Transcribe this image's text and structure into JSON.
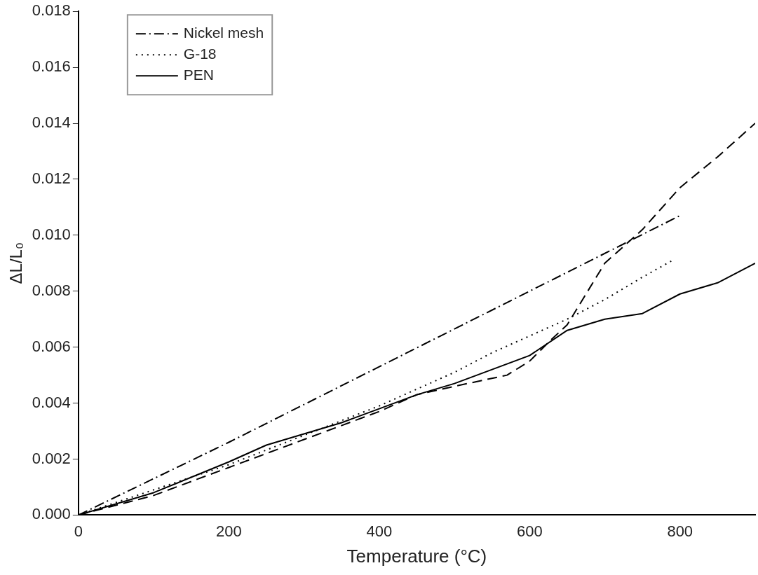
{
  "chart_data": {
    "type": "line",
    "xlabel": "Temperature (°C)",
    "ylabel": "ΔL/L₀",
    "xlim": [
      0,
      900
    ],
    "xticks": [
      0,
      200,
      400,
      600,
      800
    ],
    "ylim": [
      0,
      0.018
    ],
    "yticks": [
      {
        "value": 0,
        "label": "0.000"
      },
      {
        "value": 0.002,
        "label": "0.002"
      },
      {
        "value": 0.004,
        "label": "0.004"
      },
      {
        "value": 0.006,
        "label": "0.006"
      },
      {
        "value": 0.008,
        "label": "0.008"
      },
      {
        "value": 0.01,
        "label": "0.010"
      },
      {
        "value": 0.012,
        "label": "0.012"
      },
      {
        "value": 0.014,
        "label": "0.014"
      },
      {
        "value": 0.016,
        "label": "0.016"
      },
      {
        "value": 0.018,
        "label": "0.018"
      }
    ],
    "grid": false,
    "legend": "top left",
    "marker": "none",
    "series": [
      {
        "name": "Nickel mesh",
        "color": "#000000",
        "line_style": "dashdot",
        "x": [
          0,
          200,
          400,
          600,
          800
        ],
        "values": [
          0,
          0.0026,
          0.0053,
          0.008,
          0.0107
        ]
      },
      {
        "color": "#000000",
        "line_style": "dashed",
        "x": [
          0,
          100,
          200,
          300,
          400,
          450,
          500,
          570,
          600,
          630,
          650,
          700,
          750,
          800,
          850,
          900
        ],
        "values": [
          0,
          0.0007,
          0.0017,
          0.0027,
          0.0037,
          0.0043,
          0.0046,
          0.005,
          0.0055,
          0.0063,
          0.0068,
          0.009,
          0.0102,
          0.0117,
          0.0128,
          0.014
        ]
      },
      {
        "name": "G-18",
        "color": "#000000",
        "line_style": "dotted",
        "x": [
          0,
          200,
          400,
          450,
          500,
          550,
          600,
          650,
          700,
          750,
          790
        ],
        "values": [
          0,
          0.0018,
          0.0039,
          0.0045,
          0.0051,
          0.0058,
          0.0064,
          0.007,
          0.0077,
          0.0085,
          0.0091
        ]
      },
      {
        "name": "PEN",
        "color": "#000000",
        "line_style": "solid",
        "x": [
          0,
          100,
          200,
          250,
          300,
          350,
          400,
          450,
          500,
          550,
          600,
          650,
          700,
          750,
          800,
          850,
          900
        ],
        "values": [
          0,
          0.0008,
          0.0019,
          0.0025,
          0.0029,
          0.0033,
          0.0038,
          0.0043,
          0.0047,
          0.0052,
          0.0057,
          0.0066,
          0.007,
          0.0072,
          0.0079,
          0.0083,
          0.009
        ]
      }
    ]
  }
}
